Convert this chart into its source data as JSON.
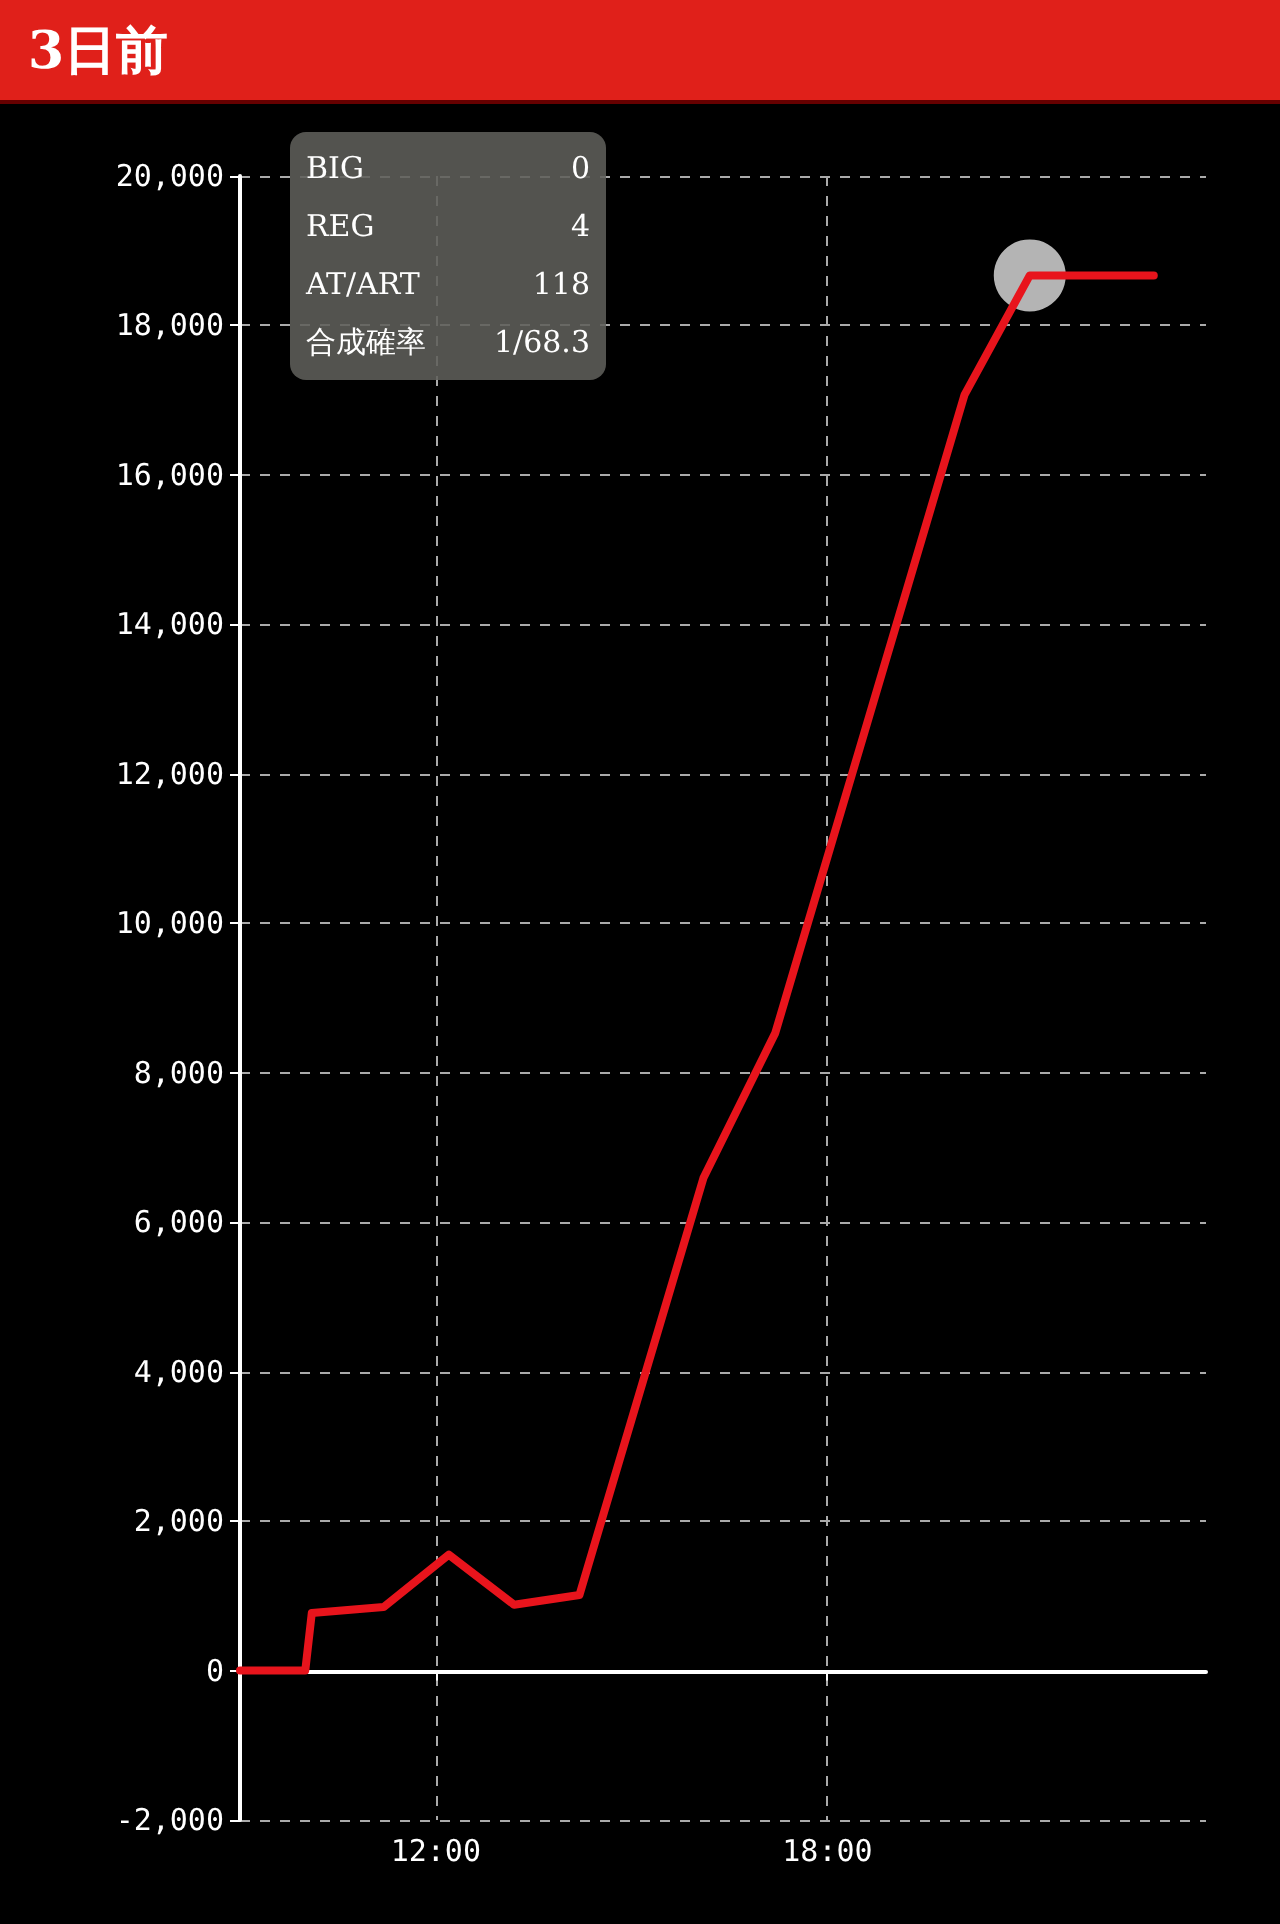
{
  "chart_data": {
    "type": "line",
    "title": "3日前",
    "x": [
      9,
      10,
      10.1,
      11.2,
      12.2,
      13.2,
      14.2,
      16.1,
      17.2,
      20.1,
      21.1,
      23
    ],
    "series": [
      {
        "color": "#e8141c",
        "values": [
          0,
          0,
          770,
          850,
          1550,
          880,
          1010,
          6590,
          8530,
          17070,
          18670,
          18670
        ]
      },
      {
        "type": "scatter",
        "marker": "circle",
        "color": "#d3d3d3",
        "x": [
          21.1
        ],
        "values": [
          18670
        ]
      }
    ],
    "xlim": [
      9,
      23.8
    ],
    "xticks": [
      {
        "value": 12,
        "label": "12:00"
      },
      {
        "value": 18,
        "label": "18:00"
      }
    ],
    "ylim": [
      -2000,
      20000
    ],
    "yticks": [
      {
        "value": -2000,
        "label": "-2,000"
      },
      {
        "value": 0,
        "label": "0"
      },
      {
        "value": 2000,
        "label": "2,000"
      },
      {
        "value": 4000,
        "label": "4,000"
      },
      {
        "value": 6000,
        "label": "6,000"
      },
      {
        "value": 8000,
        "label": "8,000"
      },
      {
        "value": 10000,
        "label": "10,000"
      },
      {
        "value": 12000,
        "label": "12,000"
      },
      {
        "value": 14000,
        "label": "14,000"
      },
      {
        "value": 16000,
        "label": "16,000"
      },
      {
        "value": 18000,
        "label": "18,000"
      },
      {
        "value": 20000,
        "label": "20,000"
      }
    ],
    "grid": true,
    "marker": "none",
    "line_style": "solid",
    "annotations": [
      "BIG",
      "0",
      "REG",
      "4",
      "AT/ART",
      "118",
      "合成確率",
      "1/68.3"
    ]
  }
}
